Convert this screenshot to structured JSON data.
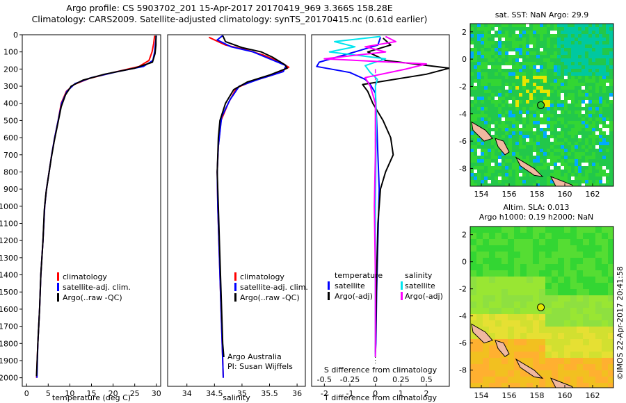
{
  "title_line1": "Argo profile: CS 5903702_201 15-Apr-2017 20170419_969 3.366S 158.28E",
  "title_line2": "Climatology: CARS2009. Satellite-adjusted climatology: synTS_20170415.nc (0.61d earlier)",
  "map_top": {
    "title": "sat. SST: NaN Argo: 29.9"
  },
  "map_bottom": {
    "title_line1": "Altim. SLA: 0.013",
    "title_line2": "Argo h1000: 0.19 h2000: NaN"
  },
  "credit": "©IMOS 22-Apr-2017 20:41:58",
  "annotation": {
    "line1": "Argo Australia",
    "line2": "PI: Susan Wijffels"
  },
  "legend_panel1": [
    "climatology",
    "satellite-adj. clim.",
    "Argo(..raw -QC)"
  ],
  "legend_panel3": {
    "temp_header": "temperature",
    "sal_header": "salinity",
    "satellite": "satellite",
    "argo": "Argo(-adj)"
  },
  "colors": {
    "climatology": "#ff0000",
    "satellite": "#0000ff",
    "argo": "#000000",
    "salinity_satellite": "#00e5ee",
    "salinity_argo": "#ff00ff"
  },
  "chart_data": [
    {
      "type": "line",
      "xlabel": "temperature (deg C)",
      "ylabel": "",
      "xlim": [
        -1,
        31
      ],
      "ylim": [
        2050,
        0
      ],
      "xticks": [
        0,
        5,
        10,
        15,
        20,
        25,
        30
      ],
      "yticks": [
        0,
        100,
        200,
        300,
        400,
        500,
        600,
        700,
        800,
        900,
        1000,
        1100,
        1200,
        1300,
        1400,
        1500,
        1600,
        1700,
        1800,
        1900,
        2000
      ],
      "series": [
        {
          "name": "climatology",
          "color": "#ff0000",
          "points": [
            [
              29.6,
              5
            ],
            [
              29.4,
              50
            ],
            [
              29.0,
              100
            ],
            [
              28.3,
              150
            ],
            [
              26.0,
              185
            ],
            [
              20.0,
              220
            ],
            [
              14.5,
              255
            ],
            [
              11.0,
              290
            ],
            [
              9.2,
              330
            ],
            [
              8.0,
              400
            ],
            [
              7.3,
              500
            ],
            [
              6.5,
              600
            ],
            [
              5.8,
              700
            ],
            [
              5.2,
              800
            ],
            [
              4.6,
              900
            ],
            [
              4.2,
              1000
            ],
            [
              3.8,
              1200
            ],
            [
              3.3,
              1400
            ],
            [
              3.0,
              1600
            ],
            [
              2.6,
              1800
            ],
            [
              2.3,
              2000
            ]
          ]
        },
        {
          "name": "satellite-adj. clim.",
          "color": "#0000ff",
          "points": [
            [
              30.0,
              5
            ],
            [
              29.8,
              50
            ],
            [
              29.6,
              100
            ],
            [
              29.2,
              150
            ],
            [
              27.0,
              185
            ],
            [
              21.0,
              215
            ],
            [
              15.0,
              250
            ],
            [
              11.2,
              285
            ],
            [
              9.3,
              330
            ],
            [
              8.1,
              400
            ],
            [
              7.3,
              500
            ],
            [
              6.5,
              600
            ],
            [
              5.8,
              700
            ],
            [
              5.2,
              800
            ],
            [
              4.6,
              900
            ],
            [
              4.2,
              1000
            ],
            [
              3.8,
              1200
            ],
            [
              3.3,
              1400
            ],
            [
              3.0,
              1600
            ],
            [
              2.6,
              1800
            ],
            [
              2.4,
              2000
            ]
          ]
        },
        {
          "name": "Argo(..raw -QC)",
          "color": "#000000",
          "points": [
            [
              29.9,
              5
            ],
            [
              29.9,
              60
            ],
            [
              29.7,
              110
            ],
            [
              29.1,
              160
            ],
            [
              25.0,
              195
            ],
            [
              18.0,
              230
            ],
            [
              13.0,
              265
            ],
            [
              10.3,
              300
            ],
            [
              9.0,
              350
            ],
            [
              8.0,
              420
            ],
            [
              7.2,
              520
            ],
            [
              6.4,
              620
            ],
            [
              5.7,
              720
            ],
            [
              5.1,
              820
            ],
            [
              4.5,
              920
            ],
            [
              4.1,
              1020
            ],
            [
              3.8,
              1200
            ],
            [
              3.3,
              1400
            ],
            [
              3.0,
              1600
            ],
            [
              2.6,
              1800
            ],
            [
              2.3,
              1990
            ]
          ]
        }
      ]
    },
    {
      "type": "line",
      "xlabel": "salinity",
      "ylabel": "",
      "xlim": [
        33.65,
        36.15
      ],
      "ylim": [
        2050,
        0
      ],
      "xticks": [
        34,
        34.5,
        35,
        35.5,
        36
      ],
      "yticks": [],
      "series": [
        {
          "name": "climatology",
          "color": "#ff0000",
          "points": [
            [
              34.4,
              15
            ],
            [
              34.7,
              60
            ],
            [
              35.1,
              90
            ],
            [
              35.4,
              120
            ],
            [
              35.7,
              160
            ],
            [
              35.85,
              190
            ],
            [
              35.6,
              230
            ],
            [
              35.2,
              270
            ],
            [
              34.9,
              310
            ],
            [
              34.75,
              400
            ],
            [
              34.62,
              500
            ],
            [
              34.57,
              650
            ],
            [
              34.55,
              800
            ],
            [
              34.56,
              1000
            ],
            [
              34.58,
              1200
            ],
            [
              34.6,
              1400
            ],
            [
              34.62,
              1600
            ],
            [
              34.64,
              1800
            ],
            [
              34.66,
              2000
            ]
          ]
        },
        {
          "name": "satellite-adj. clim.",
          "color": "#0000ff",
          "points": [
            [
              34.65,
              5
            ],
            [
              34.55,
              30
            ],
            [
              34.8,
              70
            ],
            [
              35.2,
              100
            ],
            [
              35.5,
              140
            ],
            [
              35.8,
              180
            ],
            [
              35.75,
              215
            ],
            [
              35.3,
              260
            ],
            [
              34.95,
              300
            ],
            [
              34.78,
              380
            ],
            [
              34.63,
              480
            ],
            [
              34.57,
              650
            ],
            [
              34.55,
              800
            ],
            [
              34.56,
              1000
            ],
            [
              34.58,
              1200
            ],
            [
              34.6,
              1400
            ],
            [
              34.62,
              1600
            ],
            [
              34.64,
              1800
            ],
            [
              34.66,
              2000
            ]
          ]
        },
        {
          "name": "Argo(..raw -QC)",
          "color": "#000000",
          "points": [
            [
              34.65,
              5
            ],
            [
              34.7,
              40
            ],
            [
              35.0,
              75
            ],
            [
              35.35,
              100
            ],
            [
              35.55,
              130
            ],
            [
              35.78,
              175
            ],
            [
              35.82,
              195
            ],
            [
              35.5,
              235
            ],
            [
              35.1,
              275
            ],
            [
              34.85,
              320
            ],
            [
              34.7,
              400
            ],
            [
              34.6,
              500
            ],
            [
              34.57,
              600
            ],
            [
              34.56,
              700
            ],
            [
              34.55,
              800
            ],
            [
              34.56,
              900
            ],
            [
              34.57,
              1000
            ],
            [
              34.59,
              1200
            ],
            [
              34.61,
              1400
            ],
            [
              34.63,
              1600
            ],
            [
              34.65,
              1800
            ],
            [
              34.67,
              1880
            ]
          ]
        }
      ]
    },
    {
      "type": "line",
      "xlabel": "T difference from climatology",
      "x2label": "S difference from climatology",
      "ylabel": "",
      "xlim": [
        -2.5,
        2.9
      ],
      "x2lim": [
        -0.625,
        0.725
      ],
      "ylim": [
        2050,
        0
      ],
      "xticks": [
        -2,
        -1,
        0,
        1,
        2
      ],
      "x2ticks": [
        -0.5,
        -0.25,
        0,
        0.25,
        0.5
      ],
      "yticks": [],
      "series": [
        {
          "name": "temperature satellite",
          "color": "#0000ff",
          "axis": "T",
          "points": [
            [
              0.2,
              15
            ],
            [
              0.1,
              60
            ],
            [
              -0.8,
              100
            ],
            [
              -2.2,
              160
            ],
            [
              -2.3,
              185
            ],
            [
              -1.0,
              220
            ],
            [
              -0.4,
              260
            ],
            [
              -0.2,
              290
            ],
            [
              0.0,
              340
            ],
            [
              0.05,
              500
            ],
            [
              0.1,
              700
            ],
            [
              0.15,
              900
            ],
            [
              0.1,
              1200
            ],
            [
              0.05,
              1500
            ],
            [
              0.02,
              1800
            ],
            [
              0.0,
              1860
            ]
          ]
        },
        {
          "name": "temperature Argo(-adj)",
          "color": "#000000",
          "axis": "T",
          "points": [
            [
              0.3,
              20
            ],
            [
              0.6,
              60
            ],
            [
              -0.3,
              100
            ],
            [
              0.4,
              150
            ],
            [
              2.9,
              195
            ],
            [
              2.0,
              230
            ],
            [
              -0.5,
              290
            ],
            [
              -0.3,
              330
            ],
            [
              -0.1,
              400
            ],
            [
              0.3,
              500
            ],
            [
              0.6,
              600
            ],
            [
              0.7,
              700
            ],
            [
              0.4,
              800
            ],
            [
              0.2,
              900
            ],
            [
              0.1,
              1100
            ],
            [
              0.05,
              1400
            ],
            [
              0.02,
              1700
            ],
            [
              0.0,
              1850
            ]
          ]
        },
        {
          "name": "salinity satellite",
          "color": "#00e5ee",
          "axis": "S",
          "points": [
            [
              0.05,
              10
            ],
            [
              -0.4,
              40
            ],
            [
              -0.2,
              70
            ],
            [
              -0.45,
              100
            ],
            [
              0.1,
              140
            ],
            [
              -0.1,
              180
            ],
            [
              -0.05,
              220
            ],
            [
              0.02,
              260
            ],
            [
              0.0,
              300
            ],
            [
              0.01,
              500
            ],
            [
              0.0,
              1000
            ],
            [
              0.0,
              1500
            ],
            [
              0.0,
              1880
            ]
          ]
        },
        {
          "name": "salinity Argo(-adj)",
          "color": "#ff00ff",
          "axis": "S",
          "points": [
            [
              0.1,
              10
            ],
            [
              0.2,
              40
            ],
            [
              -0.1,
              70
            ],
            [
              0.1,
              100
            ],
            [
              -0.5,
              140
            ],
            [
              0.5,
              170
            ],
            [
              0.3,
              200
            ],
            [
              -0.1,
              250
            ],
            [
              -0.05,
              300
            ],
            [
              0.0,
              400
            ],
            [
              0.0,
              700
            ],
            [
              -0.01,
              1000
            ],
            [
              0.0,
              1400
            ],
            [
              0.0,
              1800
            ],
            [
              0.0,
              1880
            ]
          ]
        }
      ]
    },
    {
      "type": "heatmap",
      "title": "sat. SST: NaN Argo: 29.9",
      "xlim": [
        153.2,
        163.5
      ],
      "ylim": [
        -9.3,
        2.6
      ],
      "xticks": [
        154,
        156,
        158,
        160,
        162
      ],
      "yticks": [
        2,
        0,
        -2,
        -4,
        -6,
        -8
      ],
      "argo_position": [
        158.28,
        -3.366
      ]
    },
    {
      "type": "heatmap",
      "title": "Altim. SLA: 0.013",
      "xlim": [
        153.2,
        163.5
      ],
      "ylim": [
        -9.3,
        2.6
      ],
      "xticks": [
        154,
        156,
        158,
        160,
        162
      ],
      "yticks": [
        2,
        0,
        -2,
        -4,
        -6,
        -8
      ],
      "argo_position": [
        158.28,
        -3.366
      ]
    }
  ]
}
